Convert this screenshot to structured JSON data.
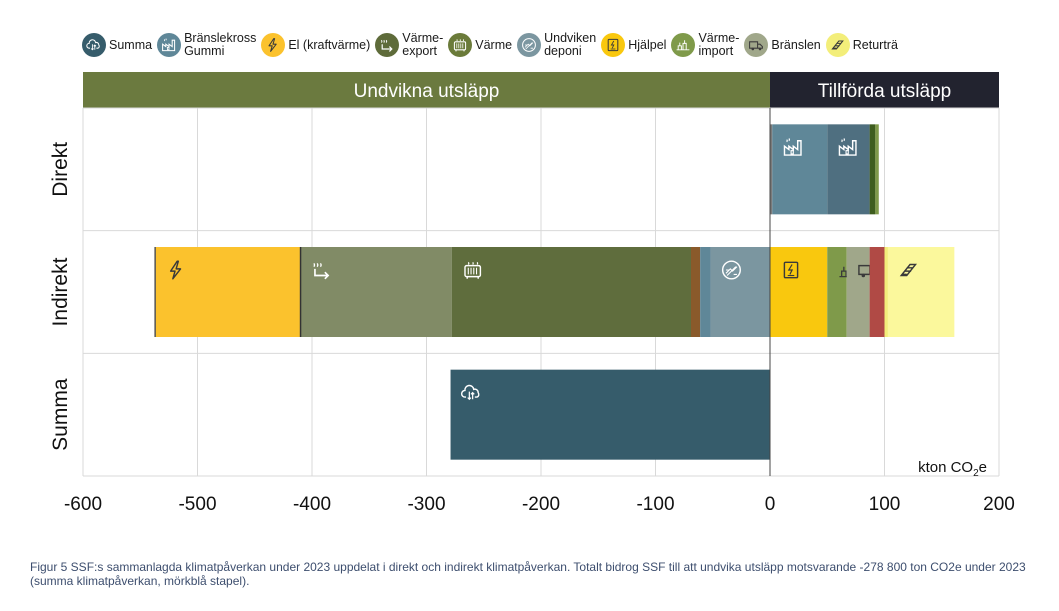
{
  "legend": [
    {
      "label": "Summa",
      "color": "#365c6b",
      "icon": "cloud-exchange-icon"
    },
    {
      "label": "Bränslekross\nGummi",
      "color": "#5f8798",
      "icon": "factory-icon"
    },
    {
      "label": "El (kraftvärme)",
      "color": "#fbc22d",
      "icon": "lightning-icon"
    },
    {
      "label": "Värme-\nexport",
      "color": "#5e6b3a",
      "icon": "heat-export-icon"
    },
    {
      "label": "Värme",
      "color": "#6b7b3a",
      "icon": "radiator-icon"
    },
    {
      "label": "Undviken\ndeponi",
      "color": "#7b96a0",
      "icon": "landfill-icon"
    },
    {
      "label": "Hjälpel",
      "color": "#f9c80e",
      "icon": "meter-icon"
    },
    {
      "label": "Värme-\nimport",
      "color": "#7f9a4a",
      "icon": "plant-icon"
    },
    {
      "label": "Bränslen",
      "color": "#a0a78a",
      "icon": "truck-icon"
    },
    {
      "label": "Returträ",
      "color": "#f3ee7a",
      "icon": "wood-icon"
    }
  ],
  "chart_data": {
    "type": "bar",
    "orientation": "horizontal-stacked",
    "categories": [
      "Direkt",
      "Indirekt",
      "Summa"
    ],
    "header_left": "Undvikna utsläpp",
    "header_right": "Tillförda utsläpp",
    "unit_label": "kton CO",
    "unit_sub": "2",
    "unit_suffix": "e",
    "xlim": [
      -600,
      200
    ],
    "xticks": [
      -600,
      -500,
      -400,
      -300,
      -200,
      -100,
      0,
      100,
      200
    ],
    "grid": true,
    "segments": [
      {
        "category": "Direkt",
        "from": 0,
        "to": 2,
        "color": "#7a7a7a"
      },
      {
        "category": "Direkt",
        "from": 2,
        "to": 50,
        "color": "#5f8798",
        "icon": "factory-icon"
      },
      {
        "category": "Direkt",
        "from": 50,
        "to": 87,
        "color": "#4f6f80",
        "icon": "factory-icon"
      },
      {
        "category": "Direkt",
        "from": 87,
        "to": 92,
        "color": "#3e5d1e"
      },
      {
        "category": "Direkt",
        "from": 92,
        "to": 95,
        "color": "#7f9a4a"
      },
      {
        "category": "Indirekt",
        "from": -537,
        "to": -410,
        "color": "#fbc22d",
        "icon": "lightning-icon"
      },
      {
        "category": "Indirekt",
        "from": -410,
        "to": -278,
        "color": "#818b66",
        "icon": "heat-export-icon"
      },
      {
        "category": "Indirekt",
        "from": -278,
        "to": -69,
        "color": "#5f6d3d",
        "icon": "radiator-icon"
      },
      {
        "category": "Indirekt",
        "from": -69,
        "to": -61,
        "color": "#8a5a2b"
      },
      {
        "category": "Indirekt",
        "from": -61,
        "to": -52,
        "color": "#5f8798"
      },
      {
        "category": "Indirekt",
        "from": -52,
        "to": 0,
        "color": "#7b96a0",
        "icon": "landfill-icon"
      },
      {
        "category": "Indirekt",
        "from": 0,
        "to": 50,
        "color": "#f9c80e",
        "icon": "meter-icon"
      },
      {
        "category": "Indirekt",
        "from": 50,
        "to": 67,
        "color": "#7f9a4a",
        "icon": "plant-icon"
      },
      {
        "category": "Indirekt",
        "from": 67,
        "to": 87,
        "color": "#a0a78a",
        "icon": "truck-icon"
      },
      {
        "category": "Indirekt",
        "from": 87,
        "to": 100,
        "color": "#b04a45"
      },
      {
        "category": "Indirekt",
        "from": 100,
        "to": 103,
        "color": "#f3ee7a"
      },
      {
        "category": "Indirekt",
        "from": 103,
        "to": 161,
        "color": "#fbf89c",
        "icon": "wood-icon"
      },
      {
        "category": "Summa",
        "from": -279,
        "to": 0,
        "color": "#365c6b",
        "icon": "cloud-exchange-icon"
      }
    ],
    "colors": {
      "header_left": "#6b7a3f",
      "header_right": "#22232f",
      "grid": "#d9d9d9"
    }
  },
  "caption": "Figur 5 SSF:s sammanlagda klimatpåverkan under 2023 uppdelat i direkt och indirekt klimatpåverkan. Totalt bidrog SSF till att undvika utsläpp motsvarande -278 800 ton CO2e under 2023 (summa klimatpåverkan, mörkblå stapel)."
}
